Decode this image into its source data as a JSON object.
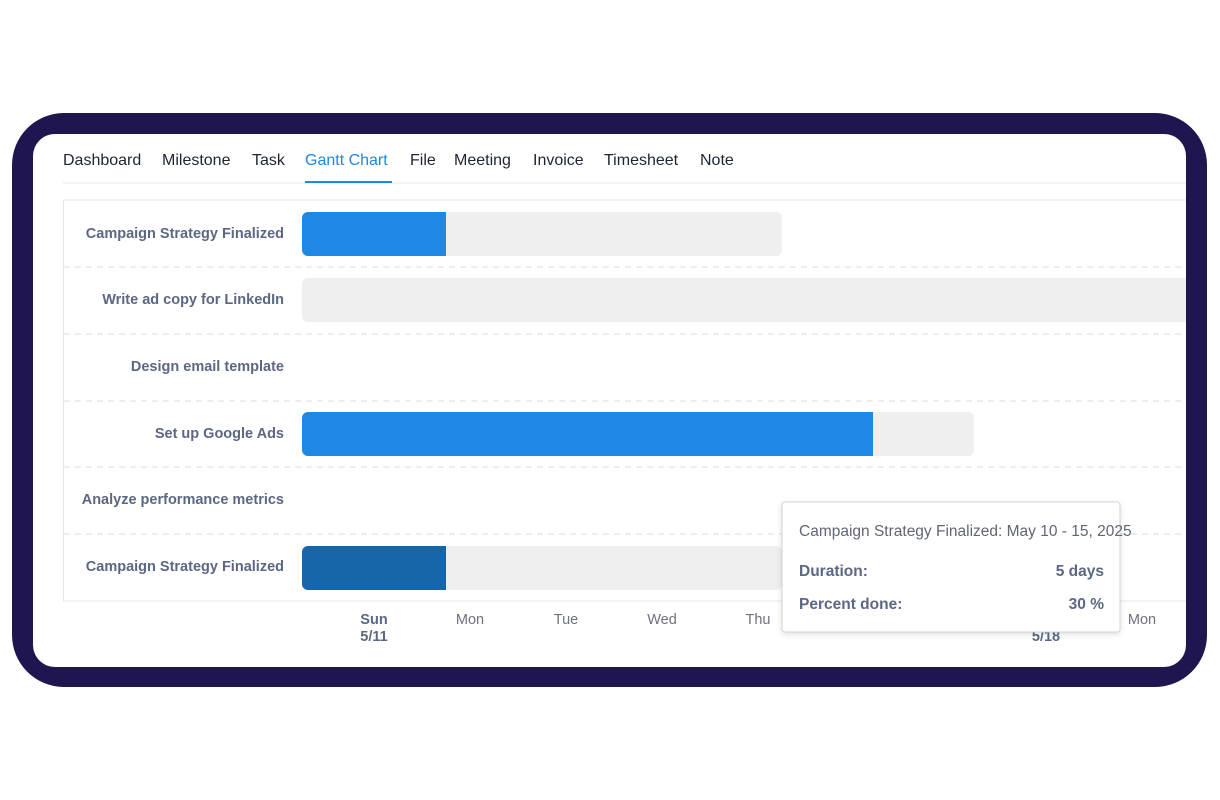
{
  "tabs": {
    "items": [
      "Dashboard",
      "Milestone",
      "Task",
      "Gantt Chart",
      "File",
      "Meeting",
      "Invoice",
      "Timesheet",
      "Note"
    ],
    "active": "Gantt Chart"
  },
  "gantt": {
    "rows": [
      "Campaign Strategy Finalized",
      "Write ad copy for LinkedIn",
      "Design email template",
      "Set up Google Ads",
      "Analyze performance metrics",
      "Campaign Strategy Finalized"
    ],
    "timeline": [
      {
        "day": "Sun",
        "date": "5/11"
      },
      {
        "day": "Mon"
      },
      {
        "day": "Tue"
      },
      {
        "day": "Wed"
      },
      {
        "day": "Thu"
      },
      {
        "date": "5/18"
      },
      {
        "day": "Mon"
      }
    ]
  },
  "tooltip": {
    "title": "Campaign Strategy Finalized: May 10 - 15, 2025",
    "fields": [
      {
        "label": "Duration:",
        "value": "5 days"
      },
      {
        "label": "Percent done:",
        "value": "30 %"
      }
    ]
  }
}
